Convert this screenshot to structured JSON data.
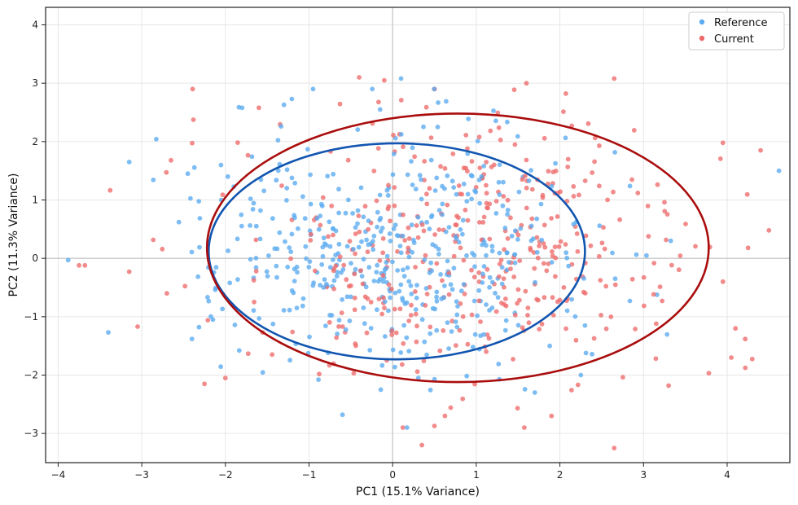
{
  "chart_data": {
    "type": "scatter",
    "title": "",
    "xlabel": "PC1 (15.1% Variance)",
    "ylabel": "PC2 (11.3% Variance)",
    "xlim": [
      -4.15,
      4.75
    ],
    "ylim": [
      -3.5,
      4.3
    ],
    "xticks": [
      -4,
      -3,
      -2,
      -1,
      0,
      1,
      2,
      3,
      4
    ],
    "yticks": [
      -3,
      -2,
      -1,
      0,
      1,
      2,
      3,
      4
    ],
    "grid": true,
    "zero_lines": true,
    "legend_position": "top-right",
    "series": [
      {
        "name": "Reference",
        "color": "#5aabf0",
        "ellipse": {
          "center": [
            0.05,
            0.12
          ],
          "rx": 2.25,
          "ry": 1.85,
          "color": "#1155b0"
        },
        "seed": 7,
        "count": 480,
        "mean": [
          0.0,
          0.12
        ],
        "sd": [
          1.1,
          1.05
        ],
        "points": [
          [
            -3.88,
            -0.03
          ],
          [
            -3.15,
            1.65
          ],
          [
            -2.4,
            -1.38
          ],
          [
            -2.15,
            -1.05
          ],
          [
            -2.45,
            1.45
          ],
          [
            -1.8,
            2.58
          ],
          [
            -1.3,
            2.63
          ],
          [
            -0.6,
            -2.68
          ],
          [
            0.1,
            3.08
          ],
          [
            -0.15,
            2.55
          ],
          [
            4.62,
            1.5
          ],
          [
            2.25,
            -2.0
          ],
          [
            2.3,
            -1.15
          ],
          [
            1.7,
            -2.3
          ],
          [
            -2.05,
            1.0
          ]
        ]
      },
      {
        "name": "Current",
        "color": "#ee6a6a",
        "ellipse": {
          "center": [
            0.78,
            0.18
          ],
          "rx": 3.0,
          "ry": 2.3,
          "color": "#aa0d0d"
        },
        "seed": 13,
        "count": 420,
        "mean": [
          0.75,
          0.15
        ],
        "sd": [
          1.35,
          1.15
        ],
        "points": [
          [
            -3.75,
            -0.12
          ],
          [
            -3.68,
            -0.12
          ],
          [
            -3.15,
            -0.23
          ],
          [
            -3.05,
            -1.17
          ],
          [
            -2.7,
            -0.6
          ],
          [
            -2.65,
            1.68
          ],
          [
            -2.25,
            -2.15
          ],
          [
            -2.0,
            -2.05
          ],
          [
            -1.6,
            2.58
          ],
          [
            -0.4,
            3.1
          ],
          [
            -0.1,
            3.05
          ],
          [
            0.35,
            -3.2
          ],
          [
            1.6,
            3.0
          ],
          [
            1.9,
            -2.7
          ],
          [
            2.65,
            3.08
          ],
          [
            2.65,
            -3.25
          ],
          [
            3.3,
            -2.18
          ],
          [
            3.95,
            1.98
          ],
          [
            4.4,
            1.85
          ],
          [
            4.5,
            0.48
          ],
          [
            4.05,
            -1.7
          ],
          [
            4.1,
            -1.2
          ],
          [
            3.95,
            -0.4
          ],
          [
            4.25,
            0.18
          ],
          [
            0.5,
            -2.87
          ]
        ]
      }
    ]
  }
}
